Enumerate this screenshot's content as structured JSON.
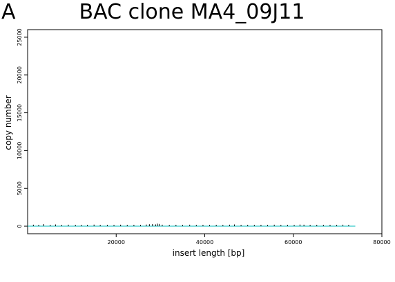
{
  "panel_label": "A",
  "chart_data": {
    "type": "line",
    "title": "BAC clone MA4_09J11",
    "xlabel": "insert length [bp]",
    "ylabel": "copy number",
    "xlim": [
      0,
      80000
    ],
    "ylim": [
      -1000,
      26000
    ],
    "x_ticks": [
      20000,
      40000,
      60000,
      80000
    ],
    "y_ticks": [
      0,
      5000,
      10000,
      15000,
      20000,
      25000
    ],
    "grid": false,
    "legend": "none",
    "series": [
      {
        "color": "#00bcbc",
        "x": [
          0,
          74000
        ],
        "y": [
          0,
          0
        ]
      }
    ],
    "spikes": {
      "color": "#000000",
      "points": [
        [
          1300,
          60
        ],
        [
          2500,
          40
        ],
        [
          3600,
          140
        ],
        [
          5100,
          50
        ],
        [
          6300,
          90
        ],
        [
          7700,
          40
        ],
        [
          9200,
          60
        ],
        [
          10800,
          40
        ],
        [
          12100,
          50
        ],
        [
          13500,
          40
        ],
        [
          15000,
          70
        ],
        [
          16400,
          40
        ],
        [
          18000,
          50
        ],
        [
          19500,
          40
        ],
        [
          21000,
          60
        ],
        [
          22500,
          40
        ],
        [
          24000,
          50
        ],
        [
          25500,
          40
        ],
        [
          26800,
          80
        ],
        [
          27500,
          120
        ],
        [
          28200,
          140
        ],
        [
          28900,
          100
        ],
        [
          29300,
          200
        ],
        [
          29700,
          160
        ],
        [
          30400,
          60
        ],
        [
          32000,
          40
        ],
        [
          33500,
          50
        ],
        [
          35000,
          40
        ],
        [
          36600,
          60
        ],
        [
          38100,
          40
        ],
        [
          39600,
          50
        ],
        [
          41100,
          40
        ],
        [
          42600,
          50
        ],
        [
          44100,
          40
        ],
        [
          45600,
          60
        ],
        [
          46700,
          90
        ],
        [
          48200,
          40
        ],
        [
          49700,
          50
        ],
        [
          51200,
          40
        ],
        [
          52700,
          50
        ],
        [
          54200,
          40
        ],
        [
          55700,
          60
        ],
        [
          57200,
          40
        ],
        [
          58700,
          50
        ],
        [
          60200,
          40
        ],
        [
          61500,
          80
        ],
        [
          62400,
          60
        ],
        [
          63800,
          40
        ],
        [
          65300,
          50
        ],
        [
          66800,
          40
        ],
        [
          68300,
          50
        ],
        [
          69800,
          40
        ],
        [
          71200,
          60
        ],
        [
          72500,
          40
        ]
      ]
    }
  }
}
